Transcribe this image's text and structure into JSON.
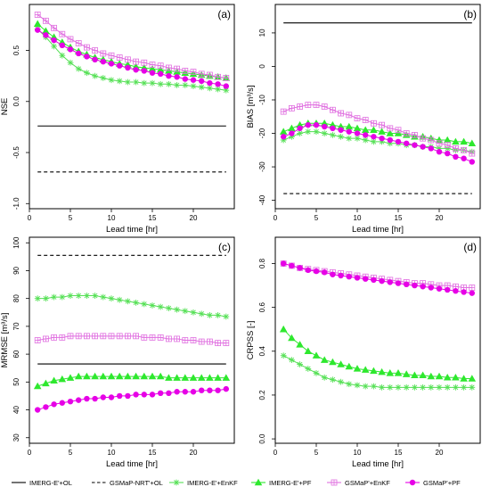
{
  "legend": {
    "items": [
      {
        "label": "IMERG-E'+OL",
        "color": "#000000",
        "dash": "solid",
        "marker": "none"
      },
      {
        "label": "GSMaP-NRT'+OL",
        "color": "#000000",
        "dash": "dashed",
        "marker": "none"
      },
      {
        "label": "IMERG-E'+EnKF",
        "color": "#55e055",
        "dash": "solid",
        "marker": "asterisk"
      },
      {
        "label": "IMERG-E'+PF",
        "color": "#2ee82e",
        "dash": "solid",
        "marker": "triangle"
      },
      {
        "label": "GSMaP'+EnKF",
        "color": "#e070e0",
        "dash": "solid",
        "marker": "open-square"
      },
      {
        "label": "GSMaP'+PF",
        "color": "#e600e6",
        "dash": "solid",
        "marker": "filled-circle"
      }
    ]
  },
  "chart_data": [
    {
      "type": "line",
      "panel_tag": "(a)",
      "xlabel": "Lead time [hr]",
      "ylabel": "NSE",
      "xlim": [
        0,
        25
      ],
      "ylim": [
        -1.05,
        0.95
      ],
      "xticks": [
        0,
        5,
        10,
        15,
        20
      ],
      "xtick_labels": [
        "0",
        "5",
        "10",
        "15",
        "20"
      ],
      "yticks": [
        -1.0,
        -0.5,
        0.0,
        0.5
      ],
      "ytick_labels": [
        "-1.0",
        "-0.5",
        "0.0",
        "0.5"
      ],
      "x": [
        1,
        2,
        3,
        4,
        5,
        6,
        7,
        8,
        9,
        10,
        11,
        12,
        13,
        14,
        15,
        16,
        17,
        18,
        19,
        20,
        21,
        22,
        23,
        24
      ],
      "series": [
        {
          "name": "IMERG-E'+OL",
          "style": 0,
          "constant": -0.24
        },
        {
          "name": "GSMaP-NRT'+OL",
          "style": 1,
          "constant": -0.69
        },
        {
          "name": "IMERG-E'+EnKF",
          "style": 2,
          "values": [
            0.71,
            0.63,
            0.54,
            0.45,
            0.38,
            0.32,
            0.28,
            0.25,
            0.23,
            0.21,
            0.2,
            0.19,
            0.19,
            0.18,
            0.18,
            0.17,
            0.17,
            0.16,
            0.16,
            0.15,
            0.14,
            0.13,
            0.12,
            0.11
          ]
        },
        {
          "name": "IMERG-E'+PF",
          "style": 3,
          "values": [
            0.76,
            0.69,
            0.63,
            0.58,
            0.53,
            0.49,
            0.46,
            0.43,
            0.41,
            0.39,
            0.37,
            0.36,
            0.34,
            0.33,
            0.32,
            0.31,
            0.3,
            0.29,
            0.28,
            0.27,
            0.26,
            0.25,
            0.24,
            0.23
          ]
        },
        {
          "name": "GSMaP'+EnKF",
          "style": 4,
          "values": [
            0.85,
            0.79,
            0.72,
            0.66,
            0.61,
            0.57,
            0.53,
            0.5,
            0.47,
            0.45,
            0.43,
            0.41,
            0.39,
            0.38,
            0.36,
            0.35,
            0.33,
            0.32,
            0.3,
            0.29,
            0.27,
            0.26,
            0.24,
            0.23
          ]
        },
        {
          "name": "GSMaP'+PF",
          "style": 5,
          "values": [
            0.7,
            0.65,
            0.6,
            0.55,
            0.51,
            0.47,
            0.44,
            0.41,
            0.39,
            0.37,
            0.35,
            0.33,
            0.31,
            0.3,
            0.28,
            0.27,
            0.25,
            0.24,
            0.22,
            0.21,
            0.2,
            0.18,
            0.17,
            0.15
          ]
        }
      ]
    },
    {
      "type": "line",
      "panel_tag": "(b)",
      "xlabel": "Lead time [hr]",
      "ylabel": "BIAS [m³/s]",
      "xlim": [
        0,
        25
      ],
      "ylim": [
        -42.5,
        18.5
      ],
      "xticks": [
        0,
        5,
        10,
        15,
        20
      ],
      "xtick_labels": [
        "0",
        "5",
        "10",
        "15",
        "20"
      ],
      "yticks": [
        -40,
        -30,
        -20,
        -10,
        0,
        10
      ],
      "ytick_labels": [
        "-40",
        "-30",
        "-20",
        "-10",
        "0",
        "10"
      ],
      "x": [
        1,
        2,
        3,
        4,
        5,
        6,
        7,
        8,
        9,
        10,
        11,
        12,
        13,
        14,
        15,
        16,
        17,
        18,
        19,
        20,
        21,
        22,
        23,
        24
      ],
      "series": [
        {
          "name": "IMERG-E'+OL",
          "style": 0,
          "constant": 13
        },
        {
          "name": "GSMaP-NRT'+OL",
          "style": 1,
          "constant": -38
        },
        {
          "name": "IMERG-E'+EnKF",
          "style": 2,
          "values": [
            -22,
            -21,
            -20,
            -19.5,
            -19.5,
            -20,
            -20.5,
            -21,
            -21.5,
            -21.5,
            -22,
            -22.5,
            -22.5,
            -23,
            -23,
            -23.5,
            -23.5,
            -24,
            -24,
            -24.5,
            -24.5,
            -25,
            -25,
            -25.5
          ]
        },
        {
          "name": "IMERG-E'+PF",
          "style": 3,
          "values": [
            -19.5,
            -18.5,
            -17.5,
            -17,
            -17,
            -17,
            -17.5,
            -18,
            -18,
            -18.5,
            -19,
            -19,
            -19.5,
            -20,
            -20,
            -20.5,
            -21,
            -21,
            -21.5,
            -22,
            -22,
            -22.5,
            -22.5,
            -23
          ]
        },
        {
          "name": "GSMaP'+EnKF",
          "style": 4,
          "values": [
            -13.5,
            -12.5,
            -12,
            -11.5,
            -11.5,
            -12,
            -13,
            -14,
            -14.5,
            -15.5,
            -16,
            -17,
            -17.5,
            -18.5,
            -19,
            -20,
            -20.5,
            -21.5,
            -22,
            -23,
            -23.5,
            -24.5,
            -25,
            -26
          ]
        },
        {
          "name": "GSMaP'+PF",
          "style": 5,
          "values": [
            -21,
            -20,
            -18.5,
            -17.5,
            -17.5,
            -18,
            -18.5,
            -19,
            -19.5,
            -20,
            -20.5,
            -21,
            -21.5,
            -22,
            -22.5,
            -23,
            -23.5,
            -24,
            -24.5,
            -25.5,
            -26,
            -27,
            -27.5,
            -28.5
          ]
        }
      ]
    },
    {
      "type": "line",
      "panel_tag": "(c)",
      "xlabel": "Lead time [hr]",
      "ylabel": "MRMSE [m³/s]",
      "xlim": [
        0,
        25
      ],
      "ylim": [
        28,
        102
      ],
      "xticks": [
        0,
        5,
        10,
        15,
        20
      ],
      "xtick_labels": [
        "0",
        "5",
        "10",
        "15",
        "20"
      ],
      "yticks": [
        30,
        40,
        50,
        60,
        70,
        80,
        90,
        100
      ],
      "ytick_labels": [
        "30",
        "40",
        "50",
        "60",
        "70",
        "80",
        "90",
        "100"
      ],
      "x": [
        1,
        2,
        3,
        4,
        5,
        6,
        7,
        8,
        9,
        10,
        11,
        12,
        13,
        14,
        15,
        16,
        17,
        18,
        19,
        20,
        21,
        22,
        23,
        24
      ],
      "series": [
        {
          "name": "IMERG-E'+OL",
          "style": 0,
          "constant": 56.5
        },
        {
          "name": "GSMaP-NRT'+OL",
          "style": 1,
          "constant": 95.5
        },
        {
          "name": "IMERG-E'+EnKF",
          "style": 2,
          "values": [
            80,
            80,
            80.5,
            80.5,
            81,
            81,
            81,
            81,
            80.5,
            80,
            79.5,
            79,
            78.5,
            78,
            77.5,
            77,
            76.5,
            76,
            75.5,
            75,
            74.5,
            74,
            74,
            73.5
          ]
        },
        {
          "name": "IMERG-E'+PF",
          "style": 3,
          "values": [
            48.5,
            49.5,
            50.5,
            51,
            51.5,
            52,
            52,
            52,
            52,
            52,
            52,
            52,
            52,
            52,
            52,
            52,
            51.5,
            51.5,
            51.5,
            51.5,
            51.5,
            51.5,
            51.5,
            51.5
          ]
        },
        {
          "name": "GSMaP'+EnKF",
          "style": 4,
          "values": [
            65,
            65.5,
            66,
            66,
            66.5,
            66.5,
            66.5,
            66.5,
            66.5,
            66.5,
            66.5,
            66.5,
            66.5,
            66,
            66,
            66,
            65.5,
            65.5,
            65,
            65,
            64.5,
            64.5,
            64,
            64
          ]
        },
        {
          "name": "GSMaP'+PF",
          "style": 5,
          "values": [
            40,
            41,
            42,
            42.5,
            43,
            43.5,
            44,
            44,
            44.5,
            44.5,
            45,
            45,
            45.5,
            45.5,
            45.5,
            46,
            46,
            46.5,
            46.5,
            46.5,
            47,
            47,
            47,
            47.5
          ]
        }
      ]
    },
    {
      "type": "line",
      "panel_tag": "(d)",
      "xlabel": "Lead time [hr]",
      "ylabel": "CRPSS [-]",
      "xlim": [
        0,
        25
      ],
      "ylim": [
        -0.02,
        0.92
      ],
      "xticks": [
        0,
        5,
        10,
        15,
        20
      ],
      "xtick_labels": [
        "0",
        "5",
        "10",
        "15",
        "20"
      ],
      "yticks": [
        0.0,
        0.2,
        0.4,
        0.6,
        0.8
      ],
      "ytick_labels": [
        "0.0",
        "0.2",
        "0.4",
        "0.6",
        "0.8"
      ],
      "x": [
        1,
        2,
        3,
        4,
        5,
        6,
        7,
        8,
        9,
        10,
        11,
        12,
        13,
        14,
        15,
        16,
        17,
        18,
        19,
        20,
        21,
        22,
        23,
        24
      ],
      "series": [
        {
          "name": "IMERG-E'+EnKF",
          "style": 2,
          "values": [
            0.38,
            0.36,
            0.34,
            0.32,
            0.3,
            0.28,
            0.27,
            0.26,
            0.25,
            0.245,
            0.24,
            0.24,
            0.235,
            0.235,
            0.235,
            0.235,
            0.235,
            0.235,
            0.235,
            0.235,
            0.235,
            0.235,
            0.235,
            0.235
          ]
        },
        {
          "name": "IMERG-E'+PF",
          "style": 3,
          "values": [
            0.5,
            0.46,
            0.43,
            0.4,
            0.38,
            0.36,
            0.35,
            0.34,
            0.33,
            0.32,
            0.315,
            0.31,
            0.305,
            0.3,
            0.3,
            0.295,
            0.29,
            0.29,
            0.285,
            0.285,
            0.28,
            0.28,
            0.275,
            0.275
          ]
        },
        {
          "name": "GSMaP'+EnKF",
          "style": 4,
          "values": [
            0.8,
            0.79,
            0.78,
            0.775,
            0.77,
            0.765,
            0.76,
            0.755,
            0.75,
            0.745,
            0.74,
            0.735,
            0.73,
            0.725,
            0.72,
            0.715,
            0.71,
            0.71,
            0.705,
            0.7,
            0.7,
            0.695,
            0.69,
            0.69
          ]
        },
        {
          "name": "GSMaP'+PF",
          "style": 5,
          "values": [
            0.8,
            0.79,
            0.78,
            0.77,
            0.765,
            0.76,
            0.75,
            0.745,
            0.74,
            0.735,
            0.73,
            0.725,
            0.72,
            0.715,
            0.71,
            0.705,
            0.7,
            0.695,
            0.69,
            0.685,
            0.68,
            0.675,
            0.67,
            0.665
          ]
        }
      ]
    }
  ]
}
